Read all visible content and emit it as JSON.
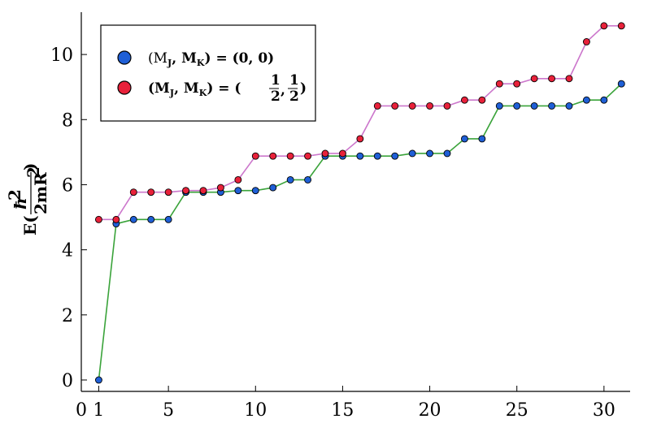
{
  "chart_data": {
    "type": "line",
    "markers": true,
    "x": [
      1,
      2,
      3,
      4,
      5,
      6,
      7,
      8,
      9,
      10,
      11,
      12,
      13,
      14,
      15,
      16,
      17,
      18,
      19,
      20,
      21,
      22,
      23,
      24,
      25,
      26,
      27,
      28,
      29,
      30,
      31
    ],
    "series": [
      {
        "name": "(M_J, M_K) = (0, 0)",
        "line_color": "#3aa33a",
        "marker_color": "#1f5fd6",
        "values": [
          0.0,
          4.8,
          4.93,
          4.93,
          4.93,
          5.77,
          5.77,
          5.77,
          5.82,
          5.82,
          5.91,
          6.15,
          6.15,
          6.88,
          6.88,
          6.88,
          6.88,
          6.88,
          6.96,
          6.96,
          6.96,
          7.41,
          7.41,
          8.42,
          8.42,
          8.42,
          8.42,
          8.42,
          8.6,
          8.6,
          9.1
        ]
      },
      {
        "name": "(M_J, M_K) = (1/2, 1/2)",
        "line_color": "#cc77cc",
        "marker_color": "#e8213a",
        "values": [
          4.93,
          4.93,
          5.77,
          5.77,
          5.77,
          5.82,
          5.82,
          5.91,
          6.15,
          6.88,
          6.88,
          6.88,
          6.88,
          6.96,
          6.96,
          7.41,
          8.42,
          8.42,
          8.42,
          8.42,
          8.42,
          8.6,
          8.6,
          9.1,
          9.1,
          9.26,
          9.26,
          9.26,
          10.39,
          10.88,
          10.88
        ]
      }
    ],
    "xlim": [
      0,
      31.5
    ],
    "ylim": [
      -0.35,
      11.3
    ],
    "xticks": [
      0,
      1,
      5,
      10,
      15,
      20,
      25,
      30
    ],
    "yticks": [
      0,
      2,
      4,
      6,
      8,
      10
    ],
    "xlabel": "",
    "ylabel": "E(ħ²/2mR²)",
    "grid": false,
    "legend_position": "top-left"
  },
  "legend": {
    "entry1": {
      "left": "(M",
      "sub1": "J",
      "comma": ", M",
      "sub2": "K",
      "right": ") = (0, 0)"
    },
    "entry2": {
      "left": "(M",
      "sub1": "J",
      "comma": ", M",
      "sub2": "K",
      "right": ") = (",
      "f1n": "1",
      "f1d": "2",
      "sep": ",",
      "f2n": "1",
      "f2d": "2",
      "end": ")"
    }
  },
  "axis_label": {
    "e": "E(",
    "num": "ħ",
    "num_sup": "2",
    "den": "2mR",
    "den_sup": "2",
    "close": ")"
  }
}
